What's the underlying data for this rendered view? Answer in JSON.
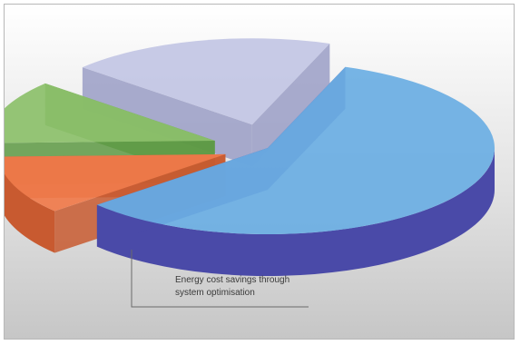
{
  "chart_data": {
    "type": "pie",
    "style": "3d-exploded",
    "title": "",
    "slices": [
      {
        "value": 58,
        "color": "#6aaee3",
        "side_color": "#4a4aa8"
      },
      {
        "value": 11,
        "color": "#f07a4a",
        "side_color": "#c85a30"
      },
      {
        "value": 12,
        "color": "#8cc06a",
        "side_color": "#5e9a44"
      },
      {
        "value": 19,
        "color": "#c2c6e4",
        "side_color": "#9a9ec6"
      }
    ],
    "annotation": {
      "line1": "Energy cost savings through",
      "line2": "system optimisation"
    }
  }
}
